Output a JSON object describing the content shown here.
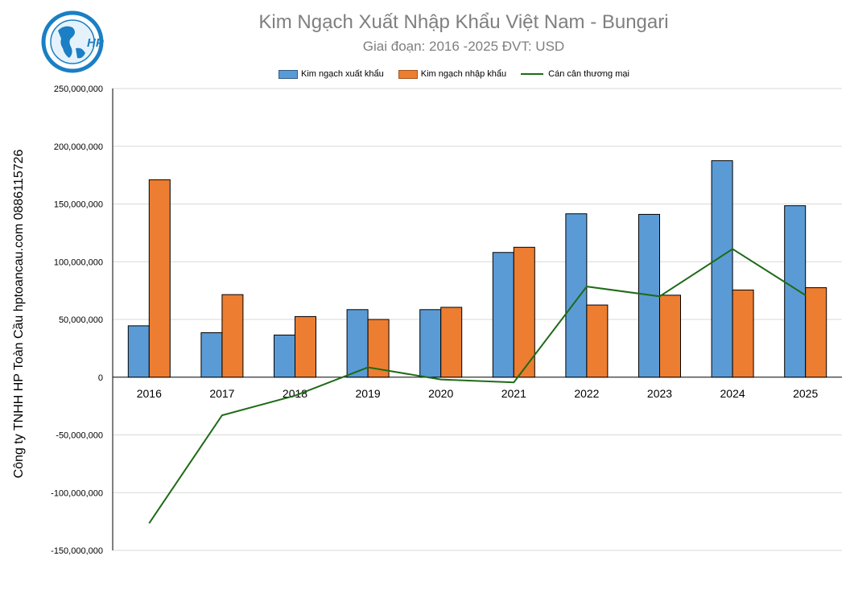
{
  "chart_data": {
    "type": "bar",
    "title": "Kim Ngạch Xuất Nhập Khẩu Việt Nam - Bungari",
    "subtitle": "Giai đoạn: 2016 -2025  ĐVT: USD",
    "ylabel": "Công ty TNHH HP Toàn Cầu hptoancau.com 0886115726",
    "xlabel": "",
    "categories": [
      "2016",
      "2017",
      "2018",
      "2019",
      "2020",
      "2021",
      "2022",
      "2023",
      "2024",
      "2025"
    ],
    "series": [
      {
        "name": "Kim ngạch xuất khẩu",
        "type": "bar",
        "color": "#5b9bd5",
        "values": [
          44500000,
          38500000,
          36500000,
          58500000,
          58500000,
          108000000,
          141500000,
          141000000,
          187500000,
          148500000
        ]
      },
      {
        "name": "Kim ngạch nhập khẩu",
        "type": "bar",
        "color": "#ed7d31",
        "values": [
          171000000,
          71500000,
          52500000,
          50000000,
          60500000,
          112500000,
          62500000,
          71000000,
          75500000,
          77500000
        ]
      },
      {
        "name": "Cán cân thương mại",
        "type": "line",
        "color": "#1e6b17",
        "values": [
          -126500000,
          -33000000,
          -16000000,
          8500000,
          -2000000,
          -4500000,
          78500000,
          70000000,
          111000000,
          71000000
        ]
      }
    ],
    "ylim": [
      -150000000,
      250000000
    ],
    "yticks": [
      -150000000,
      -100000000,
      -50000000,
      0,
      50000000,
      100000000,
      150000000,
      200000000,
      250000000
    ],
    "ytick_labels": [
      "-150,000,000",
      "-100,000,000",
      "-50,000,000",
      "0",
      "50,000,000",
      "100,000,000",
      "150,000,000",
      "200,000,000",
      "250,000,000"
    ],
    "grid": true,
    "legend_position": "top"
  },
  "logo": {
    "text": "HP",
    "icon": "globe-logo-icon",
    "color": "#1a7fc4"
  }
}
